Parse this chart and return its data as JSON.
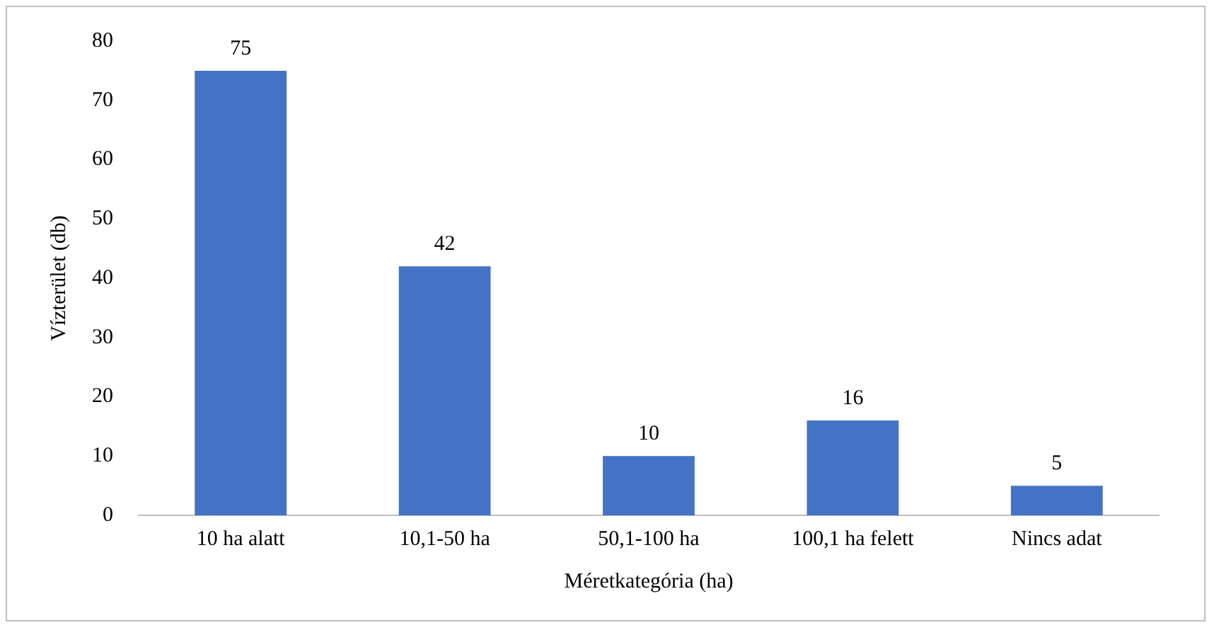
{
  "chart_data": {
    "type": "bar",
    "xlabel": "Méretkategória (ha)",
    "ylabel": "Vízterület (db)",
    "categories": [
      "10 ha alatt",
      "10,1-50 ha",
      "50,1-100 ha",
      "100,1 ha felett",
      "Nincs adat"
    ],
    "values": [
      75,
      42,
      10,
      16,
      5
    ],
    "color": "#4472c4",
    "ylim": [
      0,
      80
    ],
    "yticks": [
      0,
      10,
      20,
      30,
      40,
      50,
      60,
      70,
      80
    ],
    "grid": false,
    "legend": false,
    "data_labels": true
  }
}
